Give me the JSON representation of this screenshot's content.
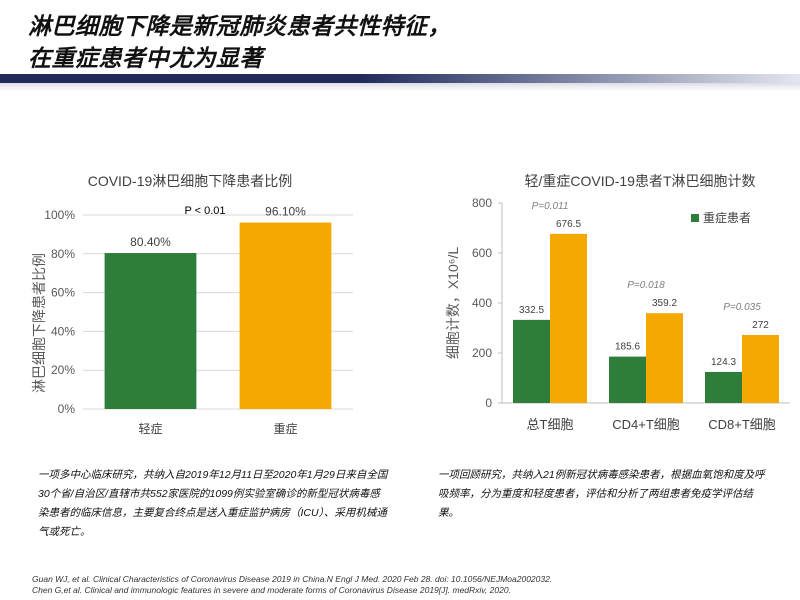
{
  "header": {
    "title_line1": "淋巴细胞下降是新冠肺炎患者共性特征，",
    "title_line2": "在重症患者中尤为显著",
    "bar_color_dark": "#1f2b5b",
    "bar_color_light": "#e4e6ef"
  },
  "chart_data": [
    {
      "type": "bar",
      "title": "COVID-19淋巴细胞下降患者比例",
      "ylabel": "淋巴细胞下降患者比例",
      "ylim": [
        0,
        100
      ],
      "yticks": [
        0,
        20,
        40,
        60,
        80,
        100
      ],
      "ytick_labels": [
        "0%",
        "20%",
        "40%",
        "60%",
        "80%",
        "100%"
      ],
      "categories": [
        "轻症",
        "重症"
      ],
      "values": [
        80.4,
        96.1
      ],
      "value_labels": [
        "80.40%",
        "96.10%"
      ],
      "colors": [
        "#2e7d3a",
        "#f5a800"
      ],
      "annotation": "P < 0.01",
      "grid": true
    },
    {
      "type": "bar",
      "title": "轻/重症COVID-19患者T淋巴细胞计数",
      "ylabel": "细胞计数，X10⁶/L",
      "ylim": [
        0,
        800
      ],
      "yticks": [
        0,
        200,
        400,
        600,
        800
      ],
      "categories": [
        "总T细胞",
        "CD4+T细胞",
        "CD8+T细胞"
      ],
      "series": [
        {
          "values": [
            332.5,
            185.6,
            124.3
          ],
          "value_labels": [
            "332.5",
            "185.6",
            "124.3"
          ],
          "color": "#2e7d3a"
        },
        {
          "name": "重症患者",
          "values": [
            676.5,
            359.2,
            272
          ],
          "value_labels": [
            "676.5",
            "359.2",
            "272"
          ],
          "color": "#f5a800"
        }
      ],
      "p_values": [
        "P=0.011",
        "P=0.018",
        "P=0.035"
      ],
      "legend_position": "top-right",
      "grid": false
    }
  ],
  "notes": {
    "left": "一项多中心临床研究，共纳入自2019年12月11日至2020年1月29日来自全国30个省/自治区/直辖市共552家医院的1099例实验室确诊的新型冠状病毒感染患者的临床信息，主要复合终点是送入重症监护病房（ICU）、采用机械通气或死亡。",
    "right": "一项回顾研究，共纳入21例新冠状病毒感染患者，根据血氧饱和度及呼吸频率，分为重度和轻度患者，评估和分析了两组患者免疫学评估结果。"
  },
  "references": [
    "Guan WJ, et al. Clinical Characteristics of Coronavirus Disease 2019  in China.N Engl J Med. 2020 Feb 28. doi: 10.1056/NEJMoa2002032.",
    "Chen G,et al. Clinical and immunologic features in severe and moderate forms of Coronavirus Disease 2019[J]. medRxiv, 2020."
  ]
}
